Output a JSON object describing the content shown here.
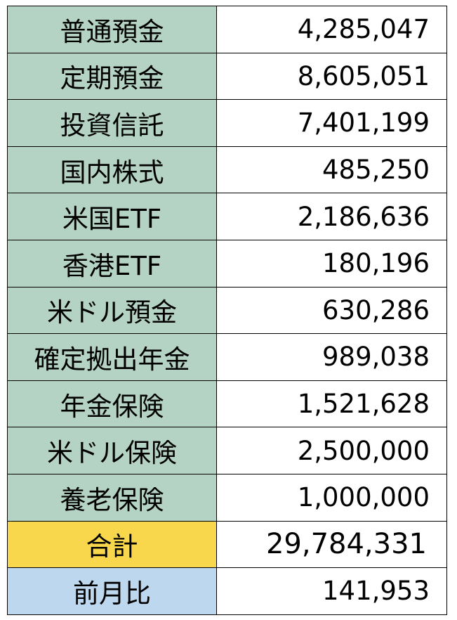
{
  "table": {
    "rows": [
      [
        "普通預金",
        "4,285,047"
      ],
      [
        "定期預金",
        "8,605,051"
      ],
      [
        "投資信託",
        "7,401,199"
      ],
      [
        "国内株式",
        "485,250"
      ],
      [
        "米国ETF",
        "2,186,636"
      ],
      [
        "香港ETF",
        "180,196"
      ],
      [
        "米ドル預金",
        "630,286"
      ],
      [
        "確定拠出年金",
        "989,038"
      ],
      [
        "年金保険",
        "1,521,628"
      ],
      [
        "米ドル保険",
        "2,500,000"
      ],
      [
        "養老保険",
        "1,000,000"
      ],
      [
        "合計",
        "29,784,331"
      ],
      [
        "前月比",
        "141,953"
      ]
    ]
  }
}
